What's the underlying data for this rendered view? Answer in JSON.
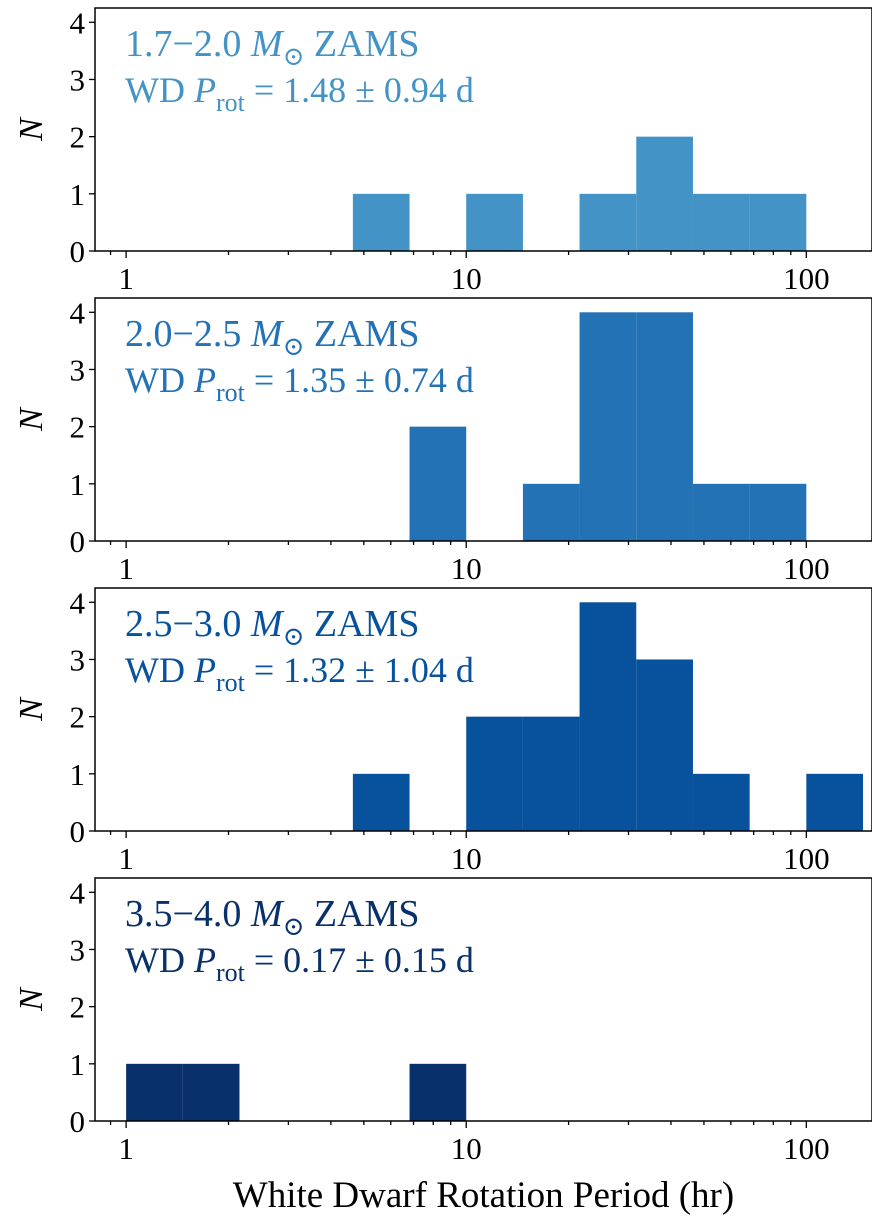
{
  "chart_data": [
    {
      "type": "histogram",
      "xscale": "log",
      "color": "#4393c6",
      "annotation": [
        [
          "1.7−2.0 ",
          "M",
          "⊙",
          " ZAMS"
        ],
        [
          "WD ",
          "P",
          "rot",
          " = 1.48 ± 0.94 d"
        ]
      ],
      "ylabel": "N",
      "bins": [
        1,
        1.468,
        2.154,
        3.162,
        4.642,
        6.813,
        10,
        14.68,
        21.54,
        31.62,
        46.42,
        68.13,
        100,
        146.8
      ],
      "values": [
        0,
        0,
        0,
        0,
        1,
        0,
        1,
        0,
        1,
        2,
        1,
        1,
        0
      ],
      "xlim": [
        0.81,
        156
      ],
      "ylim": [
        0,
        4.25
      ],
      "xticks": [
        1,
        10,
        100
      ],
      "xminorticks": [
        0.9,
        2,
        3,
        4,
        5,
        6,
        7,
        8,
        9,
        20,
        30,
        40,
        50,
        60,
        70,
        80,
        90
      ],
      "yticks": [
        0,
        1,
        2,
        3,
        4
      ]
    },
    {
      "type": "histogram",
      "xscale": "log",
      "color": "#2272b5",
      "annotation": [
        [
          "2.0−2.5 ",
          "M",
          "⊙",
          " ZAMS"
        ],
        [
          "WD ",
          "P",
          "rot",
          " = 1.35 ± 0.74 d"
        ]
      ],
      "ylabel": "N",
      "bins": [
        1,
        1.468,
        2.154,
        3.162,
        4.642,
        6.813,
        10,
        14.68,
        21.54,
        31.62,
        46.42,
        68.13,
        100,
        146.8
      ],
      "values": [
        0,
        0,
        0,
        0,
        0,
        2,
        0,
        1,
        4,
        4,
        1,
        1,
        0
      ],
      "xlim": [
        0.81,
        156
      ],
      "ylim": [
        0,
        4.25
      ],
      "xticks": [
        1,
        10,
        100
      ],
      "xminorticks": [
        0.9,
        2,
        3,
        4,
        5,
        6,
        7,
        8,
        9,
        20,
        30,
        40,
        50,
        60,
        70,
        80,
        90
      ],
      "yticks": [
        0,
        1,
        2,
        3,
        4
      ]
    },
    {
      "type": "histogram",
      "xscale": "log",
      "color": "#08519c",
      "annotation": [
        [
          "2.5−3.0 ",
          "M",
          "⊙",
          " ZAMS"
        ],
        [
          "WD ",
          "P",
          "rot",
          " = 1.32 ± 1.04 d"
        ]
      ],
      "ylabel": "N",
      "bins": [
        1,
        1.468,
        2.154,
        3.162,
        4.642,
        6.813,
        10,
        14.68,
        21.54,
        31.62,
        46.42,
        68.13,
        100,
        146.8
      ],
      "values": [
        0,
        0,
        0,
        0,
        1,
        0,
        2,
        2,
        4,
        3,
        1,
        0,
        1
      ],
      "xlim": [
        0.81,
        156
      ],
      "ylim": [
        0,
        4.25
      ],
      "xticks": [
        1,
        10,
        100
      ],
      "xminorticks": [
        0.9,
        2,
        3,
        4,
        5,
        6,
        7,
        8,
        9,
        20,
        30,
        40,
        50,
        60,
        70,
        80,
        90
      ],
      "yticks": [
        0,
        1,
        2,
        3,
        4
      ]
    },
    {
      "type": "histogram",
      "xscale": "log",
      "color": "#08306b",
      "annotation": [
        [
          "3.5−4.0 ",
          "M",
          "⊙",
          " ZAMS"
        ],
        [
          "WD ",
          "P",
          "rot",
          " = 0.17 ± 0.15 d"
        ]
      ],
      "ylabel": "N",
      "xlabel": "White Dwarf Rotation Period (hr)",
      "bins": [
        1,
        1.468,
        2.154,
        3.162,
        4.642,
        6.813,
        10,
        14.68,
        21.54,
        31.62,
        46.42,
        68.13,
        100,
        146.8
      ],
      "values": [
        1,
        1,
        0,
        0,
        0,
        1,
        0,
        0,
        0,
        0,
        0,
        0,
        0
      ],
      "xlim": [
        0.81,
        156
      ],
      "ylim": [
        0,
        4.25
      ],
      "xticks": [
        1,
        10,
        100
      ],
      "xminorticks": [
        0.9,
        2,
        3,
        4,
        5,
        6,
        7,
        8,
        9,
        20,
        30,
        40,
        50,
        60,
        70,
        80,
        90
      ],
      "yticks": [
        0,
        1,
        2,
        3,
        4
      ]
    }
  ]
}
